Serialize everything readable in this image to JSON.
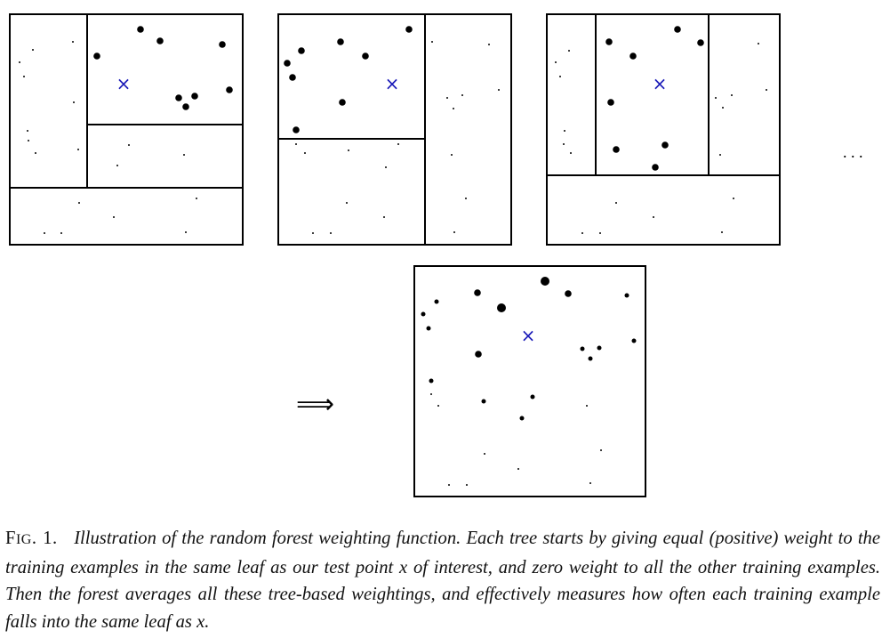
{
  "colors": {
    "ink": "#000000",
    "test_point": "#1a1ab8"
  },
  "test_point_symbol": "×",
  "ellipsis": ". . .",
  "arrow": "⟹",
  "caption": {
    "label_first": "F",
    "label_rest": "IG",
    "label_number": ". 1.",
    "text": "Illustration of the random forest weighting function. Each tree starts by giving equal (positive) weight to the training examples in the same leaf as our test point x of interest, and zero weight to all the other training examples. Then the forest averages all these tree-based weightings, and effectively measures how often each training example falls into the same leaf as x."
  }
}
